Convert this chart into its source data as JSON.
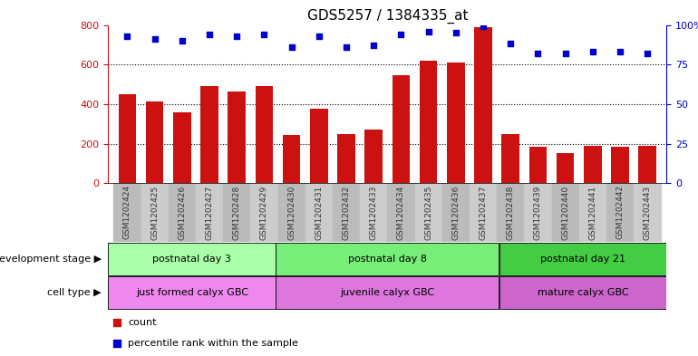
{
  "title": "GDS5257 / 1384335_at",
  "samples": [
    "GSM1202424",
    "GSM1202425",
    "GSM1202426",
    "GSM1202427",
    "GSM1202428",
    "GSM1202429",
    "GSM1202430",
    "GSM1202431",
    "GSM1202432",
    "GSM1202433",
    "GSM1202434",
    "GSM1202435",
    "GSM1202436",
    "GSM1202437",
    "GSM1202438",
    "GSM1202439",
    "GSM1202440",
    "GSM1202441",
    "GSM1202442",
    "GSM1202443"
  ],
  "counts": [
    450,
    415,
    360,
    490,
    465,
    490,
    245,
    375,
    250,
    270,
    545,
    620,
    610,
    790,
    250,
    185,
    155,
    190,
    185,
    190
  ],
  "percentile": [
    93,
    91,
    90,
    94,
    93,
    94,
    86,
    93,
    86,
    87,
    94,
    96,
    95,
    99,
    88,
    82,
    82,
    83,
    83,
    82
  ],
  "bar_color": "#cc1111",
  "dot_color": "#0000cc",
  "left_ylim": [
    0,
    800
  ],
  "right_ylim": [
    0,
    100
  ],
  "left_yticks": [
    0,
    200,
    400,
    600,
    800
  ],
  "right_yticks": [
    0,
    25,
    50,
    75,
    100
  ],
  "right_yticklabels": [
    "0",
    "25",
    "50",
    "75",
    "100%"
  ],
  "groups": [
    {
      "label": "postnatal day 3",
      "start": 0,
      "end": 5,
      "color": "#aaffaa"
    },
    {
      "label": "postnatal day 8",
      "start": 6,
      "end": 13,
      "color": "#77ee77"
    },
    {
      "label": "postnatal day 21",
      "start": 14,
      "end": 19,
      "color": "#44cc44"
    }
  ],
  "cell_types": [
    {
      "label": "just formed calyx GBC",
      "start": 0,
      "end": 5,
      "color": "#ee88ee"
    },
    {
      "label": "juvenile calyx GBC",
      "start": 6,
      "end": 13,
      "color": "#dd77dd"
    },
    {
      "label": "mature calyx GBC",
      "start": 14,
      "end": 19,
      "color": "#cc66cc"
    }
  ],
  "dev_stage_label": "development stage",
  "cell_type_label": "cell type",
  "legend_count_label": "count",
  "legend_pct_label": "percentile rank within the sample",
  "bg_color": "#ffffff",
  "left_ylabel_color": "#cc1111",
  "right_ylabel_color": "#0000cc",
  "xlabel_color": "#333333",
  "stripe_colors": [
    "#bbbbbb",
    "#cccccc"
  ]
}
